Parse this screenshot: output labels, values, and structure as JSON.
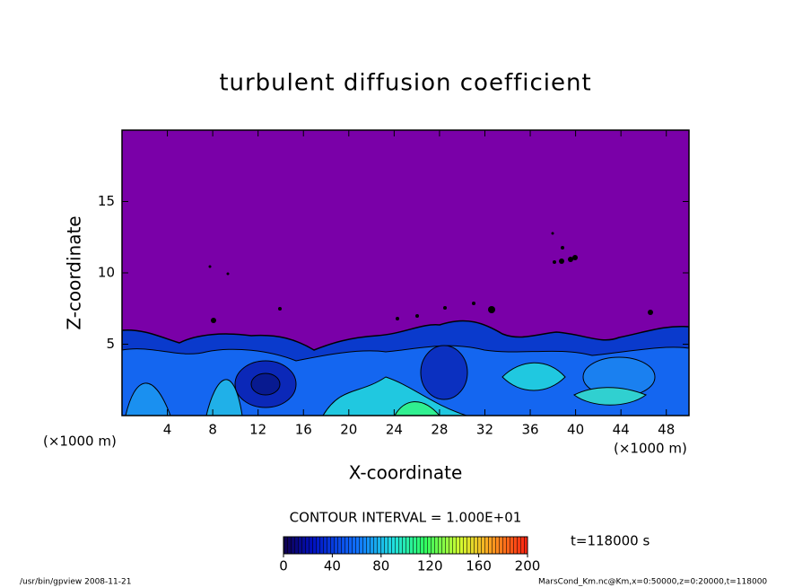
{
  "chart_data": {
    "type": "contour",
    "title": "turbulent diffusion coefficient",
    "x_label": "X-coordinate",
    "y_label": "Z-coordinate",
    "x_unit": "(×1000 m)",
    "y_unit": "(×1000 m)",
    "xlim": [
      0,
      50
    ],
    "xticks": [
      4,
      8,
      12,
      16,
      20,
      24,
      28,
      32,
      36,
      40,
      44,
      48
    ],
    "ylim": [
      0,
      20
    ],
    "yticks": [
      5,
      10,
      15
    ],
    "contour_interval": "CONTOUR INTERVAL = 1.000E+01",
    "time_label": "t=118000 s",
    "clim": [
      0,
      200
    ],
    "cticks": [
      0,
      40,
      80,
      120,
      160,
      200
    ],
    "footer_left": "/usr/bin/gpview   2008-11-21",
    "footer_right": "MarsCond_Km.nc@Km,x=0:50000,z=0:20000,t=118000"
  }
}
